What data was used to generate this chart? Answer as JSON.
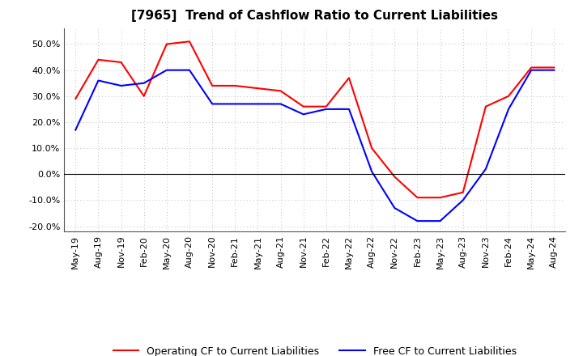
{
  "title": "[7965]  Trend of Cashflow Ratio to Current Liabilities",
  "x_labels": [
    "May-19",
    "Aug-19",
    "Nov-19",
    "Feb-20",
    "May-20",
    "Aug-20",
    "Nov-20",
    "Feb-21",
    "May-21",
    "Aug-21",
    "Nov-21",
    "Feb-22",
    "May-22",
    "Aug-22",
    "Nov-22",
    "Feb-23",
    "May-23",
    "Aug-23",
    "Nov-23",
    "Feb-24",
    "May-24",
    "Aug-24"
  ],
  "operating_cf": [
    0.29,
    0.44,
    0.43,
    0.3,
    0.5,
    0.51,
    0.34,
    0.34,
    0.33,
    0.32,
    0.26,
    0.26,
    0.37,
    0.1,
    -0.01,
    -0.09,
    -0.09,
    -0.07,
    0.26,
    0.3,
    0.41,
    0.41
  ],
  "free_cf": [
    0.17,
    0.36,
    0.34,
    0.35,
    0.4,
    0.4,
    0.27,
    0.27,
    0.27,
    0.27,
    0.23,
    0.25,
    0.25,
    0.01,
    -0.13,
    -0.18,
    -0.18,
    -0.1,
    0.02,
    0.25,
    0.4,
    0.4
  ],
  "operating_cf_color": "#ff0000",
  "free_cf_color": "#0000ff",
  "ylim": [
    -0.22,
    0.56
  ],
  "yticks": [
    -0.2,
    -0.1,
    0.0,
    0.1,
    0.2,
    0.3,
    0.4,
    0.5
  ],
  "background_color": "#ffffff",
  "grid_color": "#bbbbbb",
  "legend_op": "Operating CF to Current Liabilities",
  "legend_free": "Free CF to Current Liabilities",
  "title_fontsize": 11,
  "tick_fontsize": 8,
  "legend_fontsize": 9
}
